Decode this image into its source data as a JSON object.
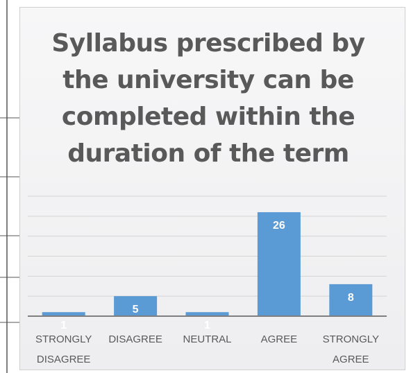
{
  "chart_data": {
    "type": "bar",
    "title": "Syllabus prescribed by the university can be completed within the duration of the term",
    "categories": [
      "STRONGLY DISAGREE",
      "DISAGREE",
      "NEUTRAL",
      "AGREE",
      "STRONGLY AGREE"
    ],
    "values": [
      1,
      5,
      1,
      26,
      8
    ],
    "color": "#5b9bd5",
    "ylim": [
      0,
      30
    ],
    "yticks": [
      0,
      5,
      10,
      15,
      20,
      25,
      30
    ],
    "grid": true
  }
}
